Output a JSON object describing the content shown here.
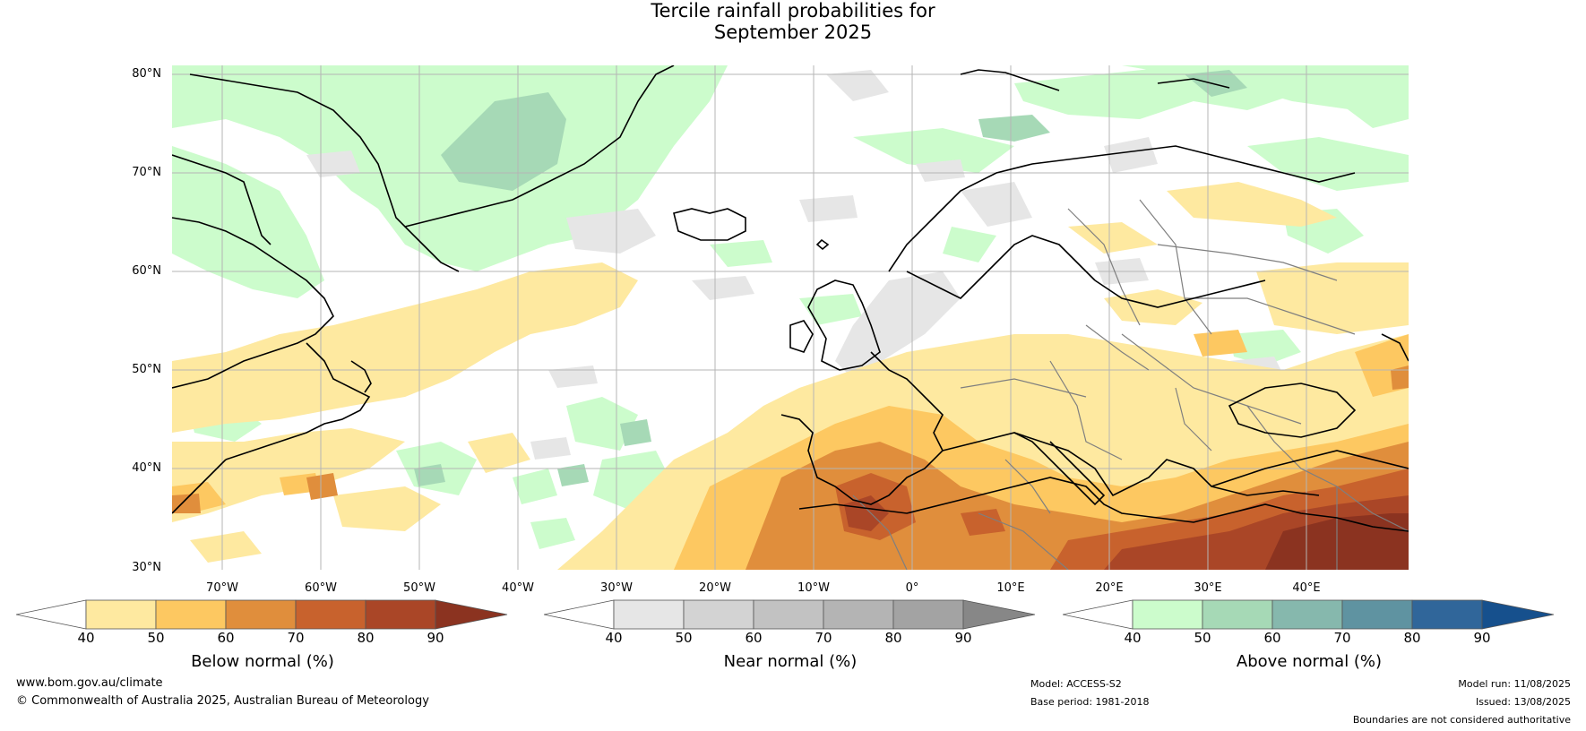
{
  "title": {
    "line1": "Tercile rainfall probabilities for",
    "line2": "September 2025"
  },
  "map": {
    "lat_labels": [
      "80°N",
      "70°N",
      "60°N",
      "50°N",
      "40°N",
      "30°N"
    ],
    "lon_labels": [
      "70°W",
      "60°W",
      "50°W",
      "40°W",
      "30°W",
      "20°W",
      "10°W",
      "0°",
      "10°E",
      "20°E",
      "30°E",
      "40°E"
    ],
    "colors": {
      "ocean_bg": "#ffffff",
      "gridline": "#b5b5b5",
      "coast": "#000000",
      "border": "#7f7f7f"
    }
  },
  "colorbars": [
    {
      "title": "Below normal (%)",
      "ticks": [
        "40",
        "50",
        "60",
        "70",
        "80",
        "90"
      ],
      "colors": [
        "#ffffff",
        "#fee9a0",
        "#fdc861",
        "#e08e3c",
        "#c8622d",
        "#aa4627",
        "#8b3320"
      ]
    },
    {
      "title": "Near normal (%)",
      "ticks": [
        "40",
        "50",
        "60",
        "70",
        "80",
        "90"
      ],
      "colors": [
        "#ffffff",
        "#e6e6e6",
        "#d3d3d3",
        "#c2c2c2",
        "#b4b4b4",
        "#a3a3a3",
        "#878787"
      ]
    },
    {
      "title": "Above normal (%)",
      "ticks": [
        "40",
        "50",
        "60",
        "70",
        "80",
        "90"
      ],
      "colors": [
        "#ffffff",
        "#ccfccc",
        "#a6d9b6",
        "#86b8ad",
        "#5f93a1",
        "#30669a",
        "#16508d"
      ]
    }
  ],
  "footer": {
    "website": "www.bom.gov.au/climate",
    "copyright": "© Commonwealth of Australia 2025, Australian Bureau of Meteorology",
    "model": "Model: ACCESS-S2",
    "base_period": "Base period: 1981-2018",
    "model_run": "Model run: 11/08/2025",
    "issued": "Issued: 13/08/2025",
    "disclaimer": "Boundaries are not considered authoritative"
  }
}
